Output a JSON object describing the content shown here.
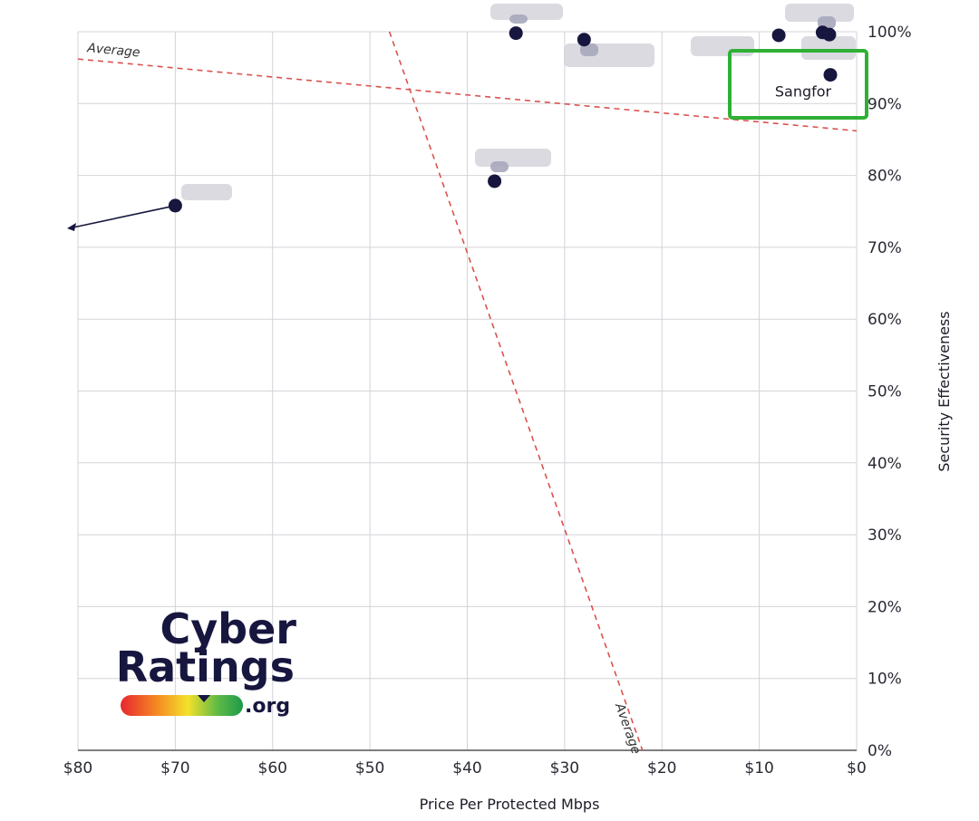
{
  "chart_data": {
    "type": "scatter",
    "title": "",
    "xlabel": "Price Per Protected Mbps",
    "ylabel": "Security Effectiveness",
    "xlim": [
      80,
      0
    ],
    "ylim": [
      0,
      100
    ],
    "x_ticks": [
      "$80",
      "$70",
      "$60",
      "$50",
      "$40",
      "$30",
      "$20",
      "$10",
      "$0"
    ],
    "y_ticks": [
      "0%",
      "10%",
      "20%",
      "30%",
      "40%",
      "50%",
      "60%",
      "70%",
      "80%",
      "90%",
      "100%"
    ],
    "grid": true,
    "points": [
      {
        "x": 70,
        "y": 75.8,
        "label": "",
        "offscale_arrow": true
      },
      {
        "x": 37.2,
        "y": 79.2,
        "label": ""
      },
      {
        "x": 35,
        "y": 99.8,
        "label": ""
      },
      {
        "x": 28,
        "y": 98.9,
        "label": ""
      },
      {
        "x": 8,
        "y": 99.5,
        "label": ""
      },
      {
        "x": 3.5,
        "y": 99.9,
        "label": ""
      },
      {
        "x": 2.8,
        "y": 99.6,
        "label": ""
      },
      {
        "x": 2.7,
        "y": 94.0,
        "label": "Sangfor",
        "highlight": true
      }
    ],
    "average_lines": [
      {
        "label": "Average",
        "from": [
          80,
          96.2
        ],
        "to": [
          0,
          86.2
        ]
      },
      {
        "label": "Average",
        "from": [
          48,
          100
        ],
        "to": [
          22,
          0
        ]
      }
    ]
  },
  "logo": {
    "line1": "Cyber",
    "line2": "Ratings",
    "suffix": ".org"
  },
  "colors": {
    "point": "#16163f",
    "average_line": "#d9534f",
    "highlight_box": "#2fb035",
    "grid": "#d3d3da"
  }
}
